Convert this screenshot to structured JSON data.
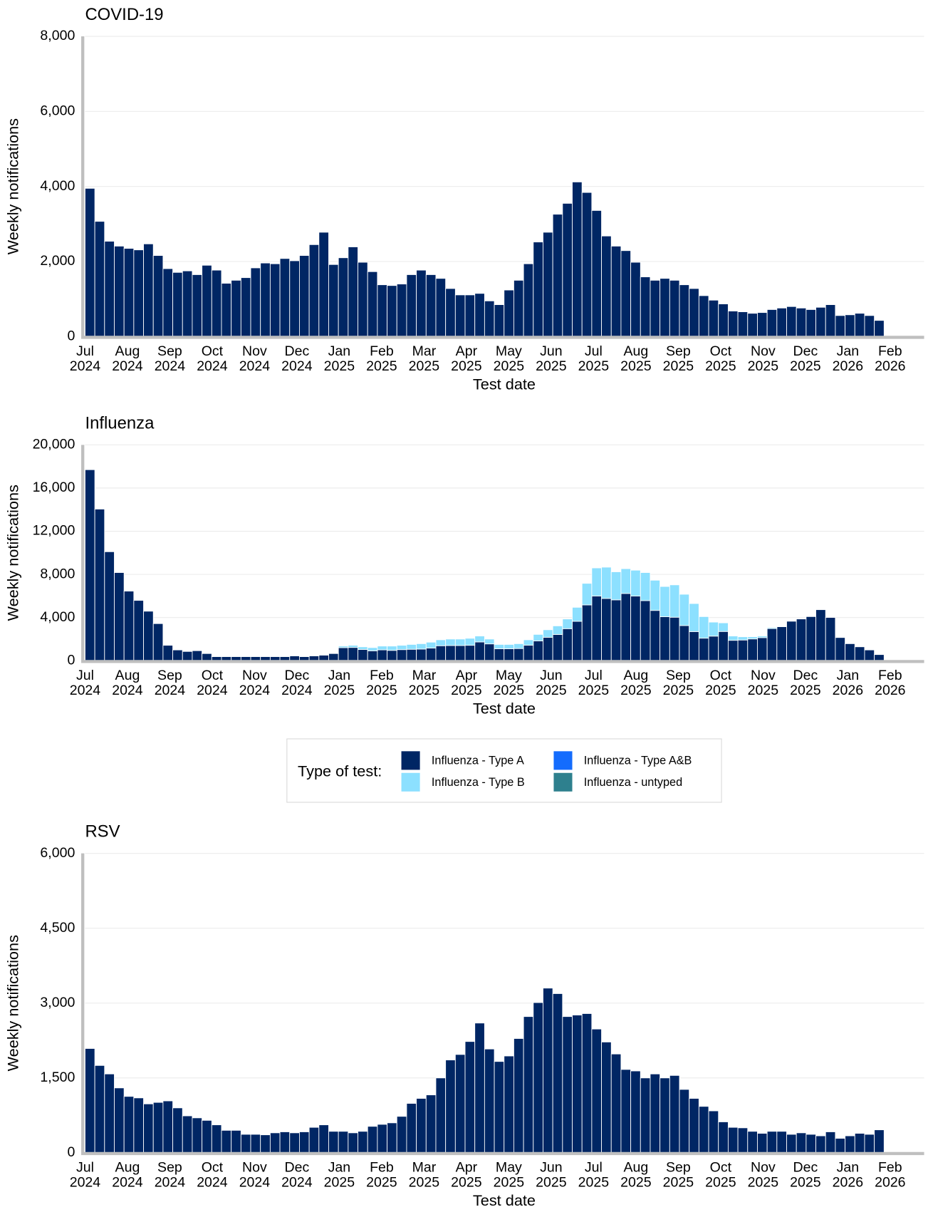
{
  "chart_data": [
    {
      "type": "bar",
      "title": "COVID-19",
      "ylabel": "Weekly notifications",
      "xlabel": "Test date",
      "color": "#002664",
      "grid": true,
      "ylim": [
        0,
        8000
      ],
      "yticks": [
        0,
        {
          "value": 2000,
          "label": "2,000"
        },
        {
          "value": 4000,
          "label": "4,000"
        },
        {
          "value": 6000,
          "label": "6,000"
        },
        {
          "value": 8000,
          "label": "8,000"
        }
      ],
      "x_labels": [
        [
          "Jul",
          "2024"
        ],
        [
          "Aug",
          "2024"
        ],
        [
          "Sep",
          "2024"
        ],
        [
          "Oct",
          "2024"
        ],
        [
          "Nov",
          "2024"
        ],
        [
          "Dec",
          "2024"
        ],
        [
          "Jan",
          "2025"
        ],
        [
          "Feb",
          "2025"
        ],
        [
          "Mar",
          "2025"
        ],
        [
          "Apr",
          "2025"
        ],
        [
          "May",
          "2025"
        ],
        [
          "Jun",
          "2025"
        ],
        [
          "Jul",
          "2025"
        ],
        [
          "Aug",
          "2025"
        ],
        [
          "Sep",
          "2025"
        ],
        [
          "Oct",
          "2025"
        ],
        [
          "Nov",
          "2025"
        ],
        [
          "Dec",
          "2025"
        ],
        [
          "Jan",
          "2026"
        ],
        [
          "Feb",
          "2026"
        ]
      ],
      "categories": [
        null,
        null,
        null,
        null,
        null,
        null,
        null,
        null,
        null,
        null,
        null,
        null,
        null,
        null,
        null,
        null,
        null,
        null,
        null,
        null,
        null,
        null,
        null,
        null,
        null,
        null,
        null,
        null,
        null,
        null,
        null,
        null,
        null,
        null,
        null,
        null,
        null,
        null,
        null,
        null,
        null,
        null,
        null,
        null,
        null,
        null,
        null,
        null,
        null,
        null,
        null,
        null,
        null,
        null,
        null,
        null,
        null,
        null,
        null,
        null,
        null,
        null,
        null,
        null,
        null,
        null,
        null,
        null,
        null,
        null,
        null,
        null,
        null,
        null,
        null,
        null,
        null,
        null,
        null,
        null,
        null,
        null
      ],
      "values": [
        3950,
        3070,
        2540,
        2410,
        2350,
        2310,
        2470,
        2160,
        1810,
        1710,
        1750,
        1650,
        1900,
        1770,
        1420,
        1500,
        1570,
        1830,
        1960,
        1940,
        2080,
        2020,
        2160,
        2450,
        2780,
        1920,
        2100,
        2390,
        1980,
        1730,
        1380,
        1360,
        1400,
        1650,
        1770,
        1650,
        1550,
        1280,
        1110,
        1110,
        1150,
        950,
        850,
        1240,
        1500,
        1940,
        2520,
        2780,
        3260,
        3550,
        4120,
        3840,
        3360,
        2680,
        2410,
        2290,
        1980,
        1590,
        1500,
        1550,
        1500,
        1380,
        1280,
        1090,
        970,
        870,
        680,
        660,
        620,
        640,
        720,
        760,
        800,
        760,
        720,
        780,
        850,
        560,
        580,
        620,
        560,
        430
      ]
    },
    {
      "type": "stacked_bar",
      "title": "Influenza",
      "ylabel": "Weekly notifications",
      "xlabel": "Test date",
      "grid": true,
      "legend": "bottom",
      "legend_title": "Type of test:",
      "ylim": [
        0,
        20000
      ],
      "yticks": [
        0,
        {
          "value": 4000,
          "label": "4,000"
        },
        {
          "value": 8000,
          "label": "8,000"
        },
        {
          "value": 12000,
          "label": "12,000"
        },
        {
          "value": 16000,
          "label": "16,000"
        },
        {
          "value": 20000,
          "label": "20,000"
        }
      ],
      "x_labels": [
        [
          "Jul",
          "2024"
        ],
        [
          "Aug",
          "2024"
        ],
        [
          "Sep",
          "2024"
        ],
        [
          "Oct",
          "2024"
        ],
        [
          "Nov",
          "2024"
        ],
        [
          "Dec",
          "2024"
        ],
        [
          "Jan",
          "2025"
        ],
        [
          "Feb",
          "2025"
        ],
        [
          "Mar",
          "2025"
        ],
        [
          "Apr",
          "2025"
        ],
        [
          "May",
          "2025"
        ],
        [
          "Jun",
          "2025"
        ],
        [
          "Jul",
          "2025"
        ],
        [
          "Aug",
          "2025"
        ],
        [
          "Sep",
          "2025"
        ],
        [
          "Oct",
          "2025"
        ],
        [
          "Nov",
          "2025"
        ],
        [
          "Dec",
          "2025"
        ],
        [
          "Jan",
          "2026"
        ],
        [
          "Feb",
          "2026"
        ]
      ],
      "categories": [
        null,
        null,
        null,
        null,
        null,
        null,
        null,
        null,
        null,
        null,
        null,
        null,
        null,
        null,
        null,
        null,
        null,
        null,
        null,
        null,
        null,
        null,
        null,
        null,
        null,
        null,
        null,
        null,
        null,
        null,
        null,
        null,
        null,
        null,
        null,
        null,
        null,
        null,
        null,
        null,
        null,
        null,
        null,
        null,
        null,
        null,
        null,
        null,
        null,
        null,
        null,
        null,
        null,
        null,
        null,
        null,
        null,
        null,
        null,
        null,
        null,
        null,
        null,
        null,
        null,
        null,
        null,
        null,
        null,
        null,
        null,
        null,
        null,
        null,
        null,
        null,
        null,
        null,
        null,
        null,
        null,
        null
      ],
      "series": [
        {
          "name": "Influenza - Type A",
          "color": "#002664",
          "values": [
            17700,
            14050,
            10100,
            8170,
            6450,
            5590,
            4590,
            3440,
            1430,
            1000,
            860,
            930,
            670,
            380,
            380,
            380,
            380,
            380,
            380,
            380,
            380,
            450,
            380,
            450,
            520,
            670,
            1210,
            1230,
            1040,
            920,
            1010,
            960,
            1030,
            1060,
            1080,
            1170,
            1390,
            1410,
            1410,
            1430,
            1740,
            1560,
            1110,
            1110,
            1130,
            1440,
            1840,
            2170,
            2430,
            2970,
            3650,
            5170,
            6000,
            5770,
            5640,
            6230,
            5990,
            5570,
            4660,
            4080,
            4030,
            3260,
            2700,
            2090,
            2280,
            2710,
            1890,
            1920,
            2020,
            2140,
            2980,
            3150,
            3660,
            3870,
            4090,
            4730,
            4010,
            2150,
            1580,
            1290,
            1000,
            570
          ]
        },
        {
          "name": "Influenza - Type B",
          "color": "#8ce0ff",
          "values": [
            0,
            0,
            0,
            0,
            0,
            0,
            0,
            0,
            0,
            0,
            0,
            0,
            50,
            50,
            50,
            50,
            50,
            50,
            50,
            50,
            50,
            50,
            50,
            50,
            50,
            50,
            150,
            200,
            250,
            300,
            350,
            400,
            400,
            450,
            500,
            550,
            550,
            600,
            600,
            650,
            550,
            450,
            400,
            400,
            450,
            500,
            600,
            700,
            800,
            900,
            1300,
            2000,
            2600,
            2900,
            2600,
            2300,
            2400,
            2600,
            2800,
            2800,
            3000,
            2900,
            2600,
            2000,
            1300,
            800,
            400,
            300,
            200,
            150,
            100,
            0,
            0,
            0,
            0,
            0,
            0,
            0,
            0,
            0,
            0,
            0
          ]
        },
        {
          "name": "Influenza - Type A&B",
          "color": "#146cfd",
          "values": [
            0,
            0,
            0,
            0,
            0,
            0,
            0,
            0,
            0,
            0,
            0,
            0,
            0,
            0,
            0,
            0,
            0,
            0,
            0,
            0,
            0,
            0,
            0,
            0,
            0,
            0,
            0,
            0,
            0,
            0,
            0,
            0,
            0,
            0,
            0,
            0,
            0,
            0,
            0,
            0,
            0,
            0,
            0,
            0,
            0,
            0,
            0,
            0,
            0,
            0,
            0,
            0,
            0,
            0,
            0,
            0,
            0,
            0,
            0,
            0,
            0,
            0,
            0,
            0,
            0,
            0,
            0,
            0,
            0,
            0,
            0,
            0,
            0,
            0,
            0,
            0,
            0,
            0,
            0,
            0,
            0,
            0
          ]
        },
        {
          "name": "Influenza - untyped",
          "color": "#2e808e",
          "values": [
            0,
            0,
            0,
            0,
            0,
            0,
            0,
            0,
            0,
            0,
            0,
            0,
            0,
            0,
            0,
            0,
            0,
            0,
            0,
            0,
            0,
            0,
            0,
            0,
            0,
            0,
            0,
            0,
            0,
            0,
            0,
            0,
            0,
            0,
            0,
            0,
            0,
            0,
            0,
            0,
            0,
            0,
            0,
            0,
            0,
            0,
            0,
            0,
            0,
            0,
            0,
            0,
            0,
            0,
            0,
            0,
            0,
            0,
            0,
            0,
            0,
            0,
            0,
            0,
            0,
            0,
            0,
            0,
            0,
            0,
            0,
            0,
            0,
            0,
            0,
            0,
            0,
            0,
            0,
            0,
            0,
            0
          ]
        }
      ]
    },
    {
      "type": "bar",
      "title": "RSV",
      "ylabel": "Weekly notifications",
      "xlabel": "Test date",
      "color": "#002664",
      "grid": true,
      "ylim": [
        0,
        6000
      ],
      "yticks": [
        0,
        {
          "value": 1500,
          "label": "1,500"
        },
        {
          "value": 3000,
          "label": "3,000"
        },
        {
          "value": 4500,
          "label": "4,500"
        },
        {
          "value": 6000,
          "label": "6,000"
        }
      ],
      "x_labels": [
        [
          "Jul",
          "2024"
        ],
        [
          "Aug",
          "2024"
        ],
        [
          "Sep",
          "2024"
        ],
        [
          "Oct",
          "2024"
        ],
        [
          "Nov",
          "2024"
        ],
        [
          "Dec",
          "2024"
        ],
        [
          "Jan",
          "2025"
        ],
        [
          "Feb",
          "2025"
        ],
        [
          "Mar",
          "2025"
        ],
        [
          "Apr",
          "2025"
        ],
        [
          "May",
          "2025"
        ],
        [
          "Jun",
          "2025"
        ],
        [
          "Jul",
          "2025"
        ],
        [
          "Aug",
          "2025"
        ],
        [
          "Sep",
          "2025"
        ],
        [
          "Oct",
          "2025"
        ],
        [
          "Nov",
          "2025"
        ],
        [
          "Dec",
          "2025"
        ],
        [
          "Jan",
          "2026"
        ],
        [
          "Feb",
          "2026"
        ]
      ],
      "categories": [
        null,
        null,
        null,
        null,
        null,
        null,
        null,
        null,
        null,
        null,
        null,
        null,
        null,
        null,
        null,
        null,
        null,
        null,
        null,
        null,
        null,
        null,
        null,
        null,
        null,
        null,
        null,
        null,
        null,
        null,
        null,
        null,
        null,
        null,
        null,
        null,
        null,
        null,
        null,
        null,
        null,
        null,
        null,
        null,
        null,
        null,
        null,
        null,
        null,
        null,
        null,
        null,
        null,
        null,
        null,
        null,
        null,
        null,
        null,
        null,
        null,
        null,
        null,
        null,
        null,
        null,
        null,
        null,
        null,
        null,
        null,
        null,
        null,
        null,
        null,
        null,
        null,
        null,
        null,
        null,
        null,
        null
      ],
      "values": [
        2090,
        1750,
        1580,
        1300,
        1130,
        1100,
        980,
        1010,
        1040,
        900,
        740,
        700,
        650,
        560,
        450,
        450,
        370,
        370,
        360,
        400,
        420,
        400,
        420,
        510,
        560,
        430,
        430,
        400,
        430,
        530,
        570,
        600,
        730,
        990,
        1090,
        1160,
        1500,
        1860,
        1970,
        2230,
        2600,
        2080,
        1830,
        1940,
        2290,
        2730,
        3010,
        3300,
        3190,
        2730,
        2760,
        2790,
        2480,
        2220,
        1980,
        1670,
        1640,
        1500,
        1580,
        1500,
        1550,
        1270,
        1090,
        930,
        840,
        620,
        510,
        500,
        430,
        390,
        430,
        430,
        370,
        400,
        370,
        340,
        420,
        290,
        340,
        390,
        370,
        460
      ]
    }
  ]
}
